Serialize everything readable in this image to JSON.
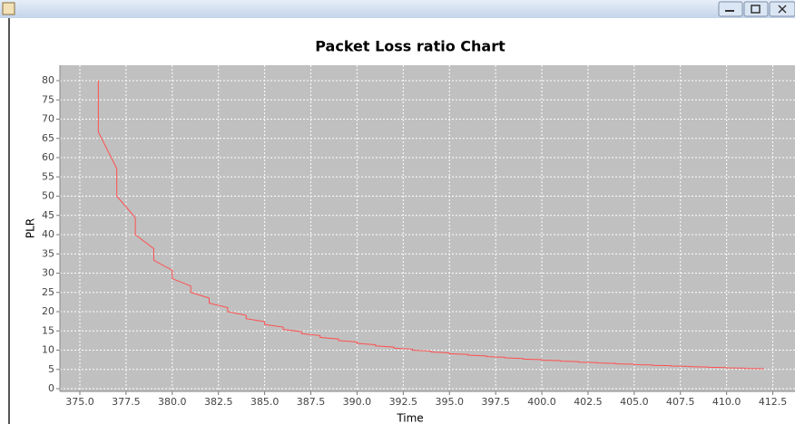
{
  "chart_data": {
    "type": "line",
    "title": "Packet Loss ratio Chart",
    "x_label": "Time",
    "y_label": "PLR",
    "xlim": [
      373.92,
      413.7
    ],
    "ylim": [
      -0.7,
      84
    ],
    "xticks": [
      {
        "value": 375,
        "label": "375.0"
      },
      377.5,
      {
        "value": 380,
        "label": "380.0"
      },
      382.5,
      {
        "value": 385,
        "label": "385.0"
      },
      387.5,
      {
        "value": 390,
        "label": "390.0"
      },
      392.5,
      {
        "value": 395,
        "label": "395.0"
      },
      397.5,
      {
        "value": 400,
        "label": "400.0"
      },
      402.5,
      {
        "value": 405,
        "label": "405.0"
      },
      407.5,
      {
        "value": 410,
        "label": "410.0"
      },
      412.5
    ],
    "yticks": [
      0,
      5,
      10,
      15,
      20,
      25,
      30,
      35,
      40,
      45,
      50,
      55,
      60,
      65,
      70,
      75,
      80
    ],
    "grid": true,
    "background": "#c0c0c0",
    "series": [
      {
        "name": "PLR",
        "color": "#ff5050",
        "x": [
          376,
          376,
          377,
          377,
          378,
          378,
          379,
          379,
          380,
          380,
          381,
          381,
          382,
          382,
          383,
          383,
          384,
          384,
          385,
          385,
          386,
          386,
          387,
          387,
          388,
          388,
          389,
          389,
          390,
          390,
          391,
          391,
          392,
          392,
          393,
          393,
          394,
          394,
          395,
          395,
          396,
          396,
          397,
          397,
          398,
          398,
          399,
          399,
          400,
          400,
          401,
          401,
          402,
          402,
          403,
          403,
          404,
          404,
          405,
          405,
          406,
          406,
          407,
          407,
          408,
          408,
          409,
          409,
          410,
          410,
          411,
          411,
          412,
          412
        ],
        "values": [
          80,
          66.67,
          57.14,
          50,
          44.44,
          40,
          36.36,
          33.33,
          30.77,
          28.57,
          26.67,
          25,
          23.53,
          22.22,
          21.05,
          20,
          19.05,
          18.18,
          17.39,
          16.67,
          16,
          15.38,
          14.81,
          14.29,
          13.79,
          13.33,
          12.9,
          12.5,
          12.12,
          11.76,
          11.43,
          11.11,
          10.81,
          10.53,
          10.26,
          10,
          9.76,
          9.52,
          9.3,
          9.09,
          8.89,
          8.7,
          8.51,
          8.33,
          8.16,
          8,
          7.84,
          7.69,
          7.55,
          7.41,
          7.27,
          7.14,
          7.02,
          6.9,
          6.78,
          6.67,
          6.56,
          6.45,
          6.35,
          6.25,
          6.15,
          6.06,
          5.97,
          5.88,
          5.8,
          5.71,
          5.63,
          5.56,
          5.48,
          5.41,
          5.33,
          5.26,
          5.19,
          5.13
        ]
      }
    ]
  }
}
